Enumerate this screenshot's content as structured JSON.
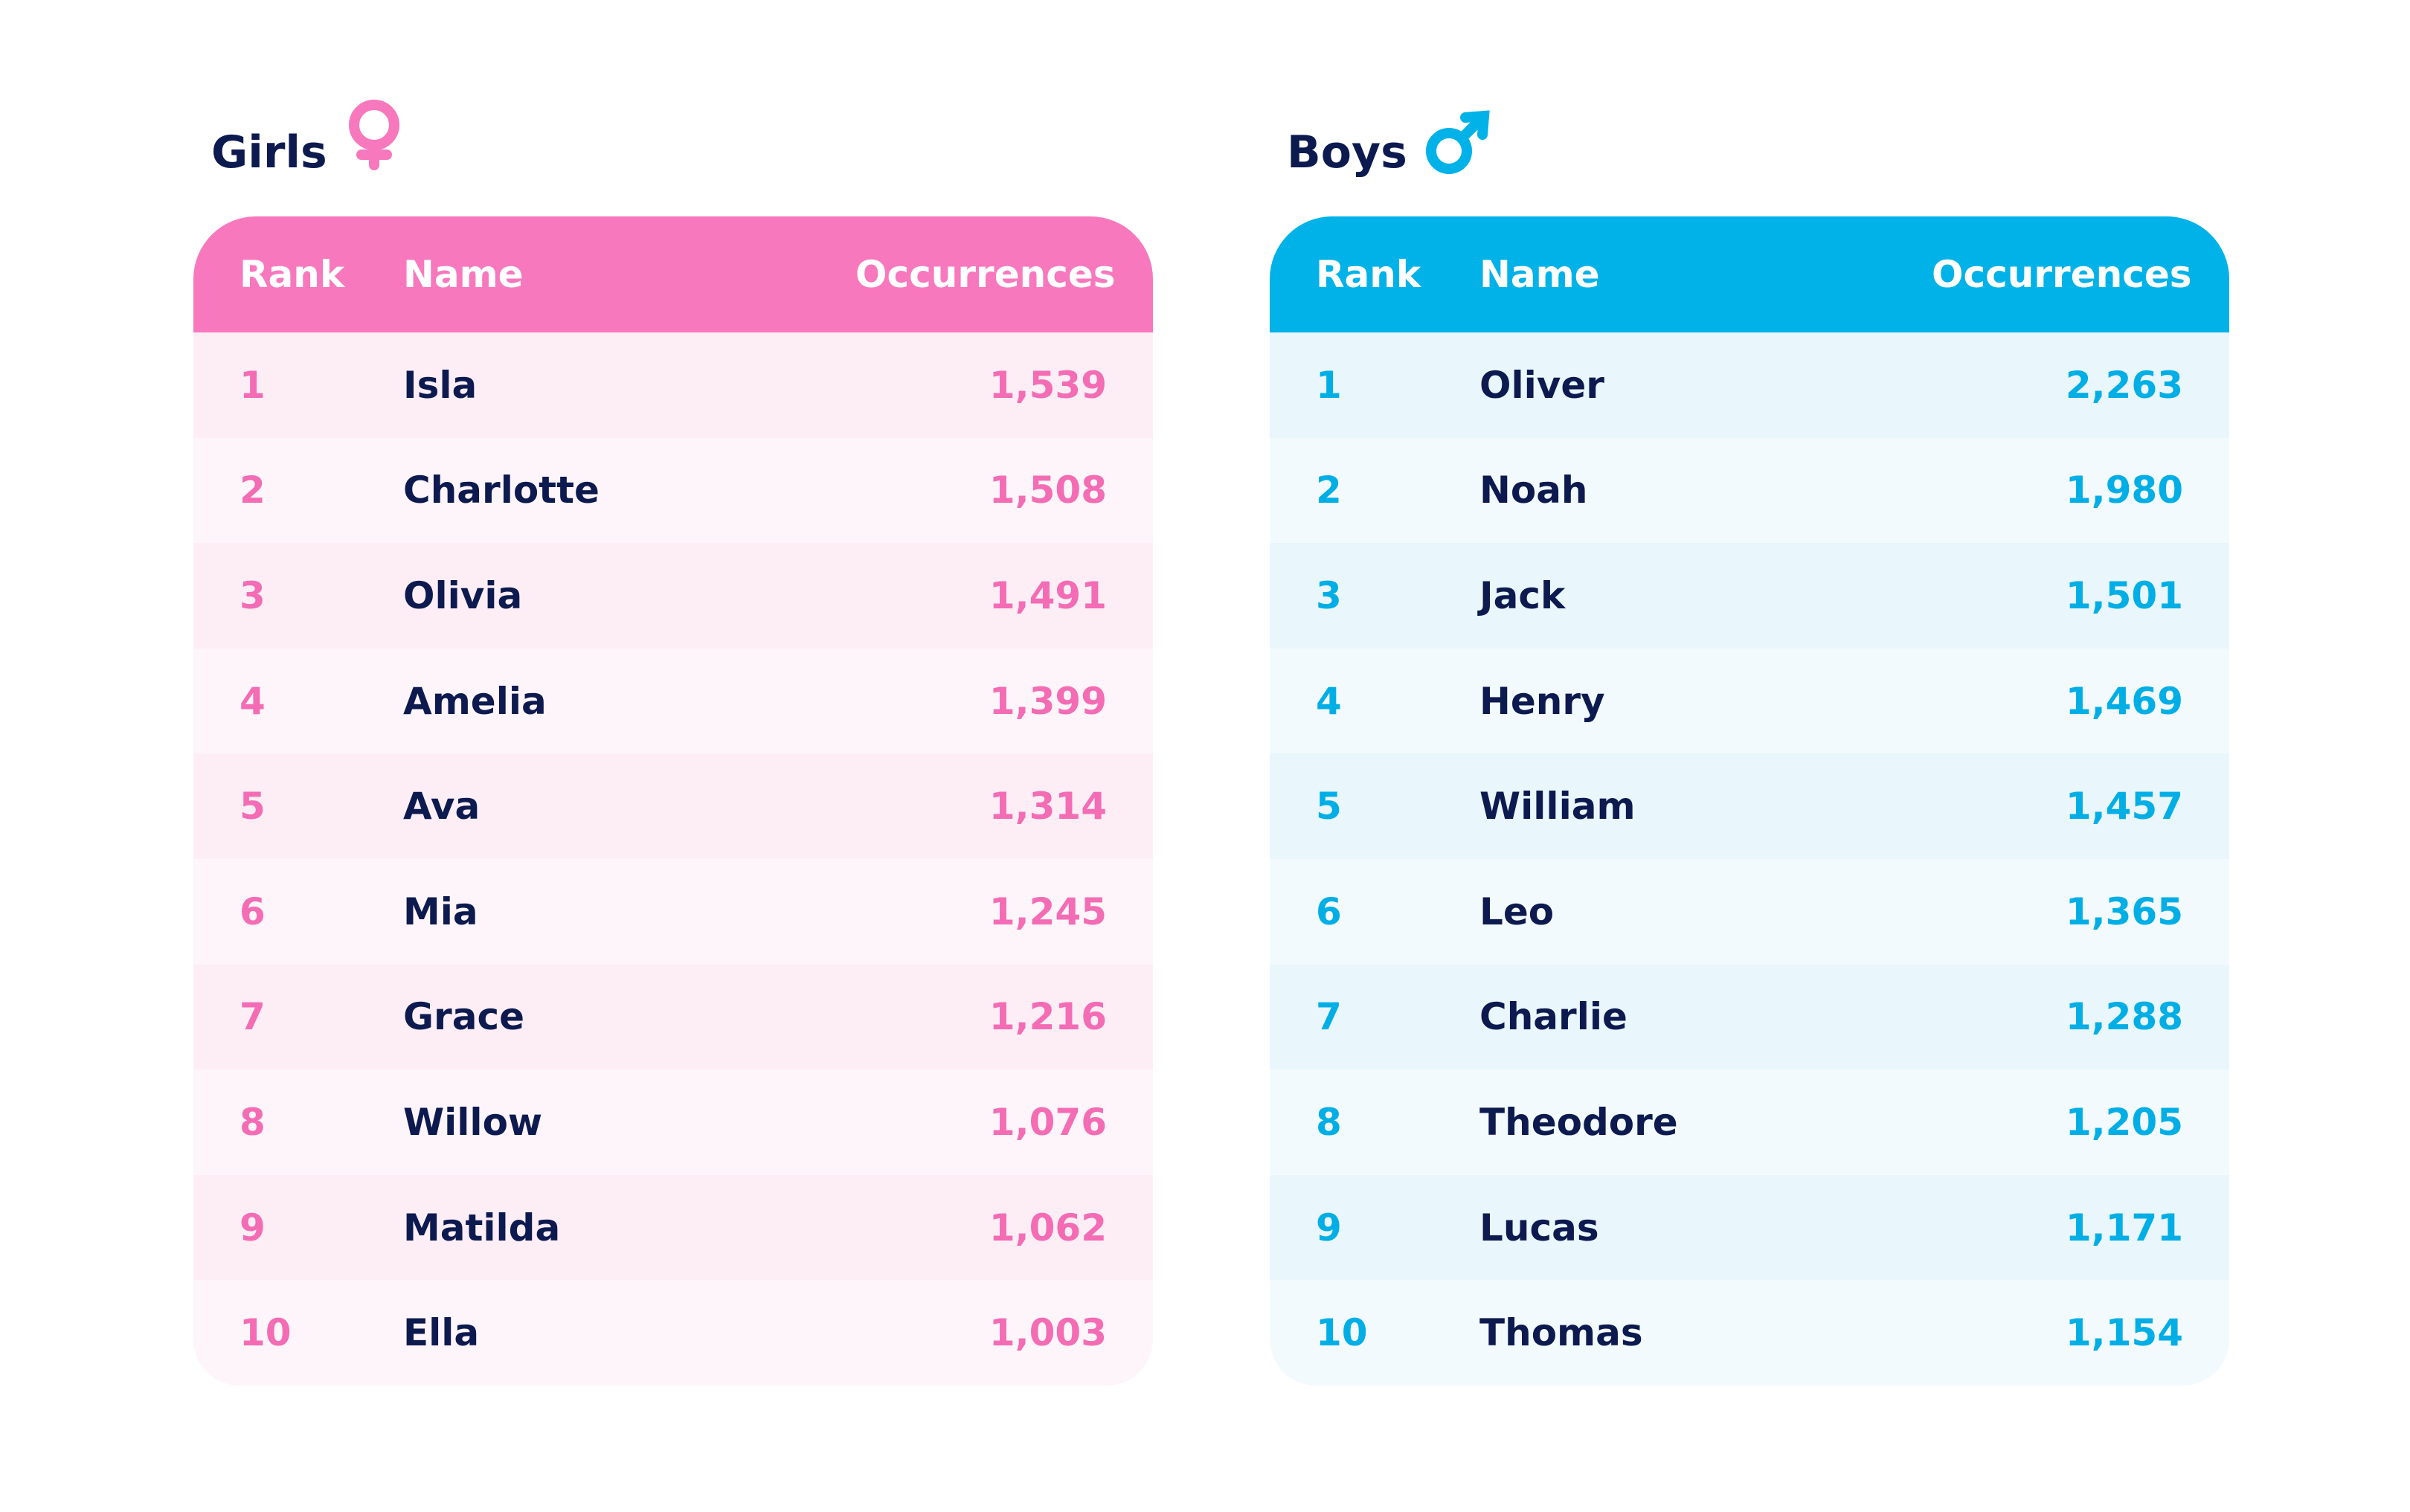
{
  "girls": {
    "title": "Girls",
    "columns": [
      "Rank",
      "Name",
      "Occurrences"
    ],
    "rows": [
      [
        "1",
        "Isla",
        "1,539"
      ],
      [
        "2",
        "Charlotte",
        "1,508"
      ],
      [
        "3",
        "Olivia",
        "1,491"
      ],
      [
        "4",
        "Amelia",
        "1,399"
      ],
      [
        "5",
        "Ava",
        "1,314"
      ],
      [
        "6",
        "Mia",
        "1,245"
      ],
      [
        "7",
        "Grace",
        "1,216"
      ],
      [
        "8",
        "Willow",
        "1,076"
      ],
      [
        "9",
        "Matilda",
        "1,062"
      ],
      [
        "10",
        "Ella",
        "1,003"
      ]
    ]
  },
  "boys": {
    "title": "Boys",
    "columns": [
      "Rank",
      "Name",
      "Occurrences"
    ],
    "rows": [
      [
        "1",
        "Oliver",
        "2,263"
      ],
      [
        "2",
        "Noah",
        "1,980"
      ],
      [
        "3",
        "Jack",
        "1,501"
      ],
      [
        "4",
        "Henry",
        "1,469"
      ],
      [
        "5",
        "William",
        "1,457"
      ],
      [
        "6",
        "Leo",
        "1,365"
      ],
      [
        "7",
        "Charlie",
        "1,288"
      ],
      [
        "8",
        "Theodore",
        "1,205"
      ],
      [
        "9",
        "Lucas",
        "1,171"
      ],
      [
        "10",
        "Thomas",
        "1,154"
      ]
    ]
  }
}
